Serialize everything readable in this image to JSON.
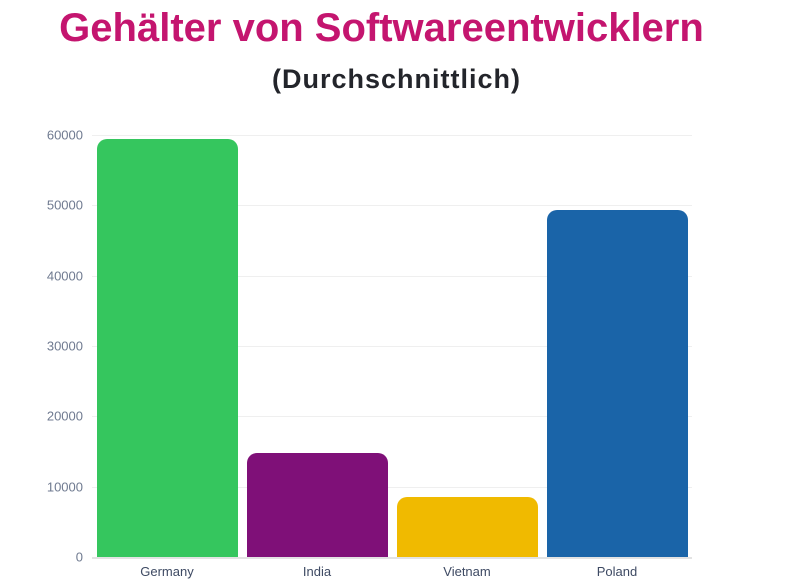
{
  "page": {
    "background": "#ffffff"
  },
  "chart_data": {
    "type": "bar",
    "title": "Gehälter von Softwareentwicklern",
    "subtitle": "(Durchschnittlich)",
    "categories": [
      "Germany",
      "India",
      "Vietnam",
      "Poland"
    ],
    "values": [
      59500,
      14800,
      8500,
      49400
    ],
    "bar_colors": [
      "#35C65E",
      "#7F1078",
      "#F0BA00",
      "#1A64A8"
    ],
    "ylim": [
      0,
      60000
    ],
    "yticks": [
      0,
      10000,
      20000,
      30000,
      40000,
      50000,
      60000
    ],
    "ytick_labels": [
      "0",
      "10000",
      "20000",
      "30000",
      "40000",
      "50000",
      "60000"
    ],
    "xlabel": "",
    "ylabel": "",
    "grid": "horizontal",
    "legend": "none",
    "title_color": "#C4156F",
    "subtitle_color": "#23252B",
    "ytick_label_color": "#6F7A90",
    "xtick_label_color": "#3E4A63",
    "gridline_color": "#EFEFEF",
    "baseline_color": "#E3E3E3"
  }
}
